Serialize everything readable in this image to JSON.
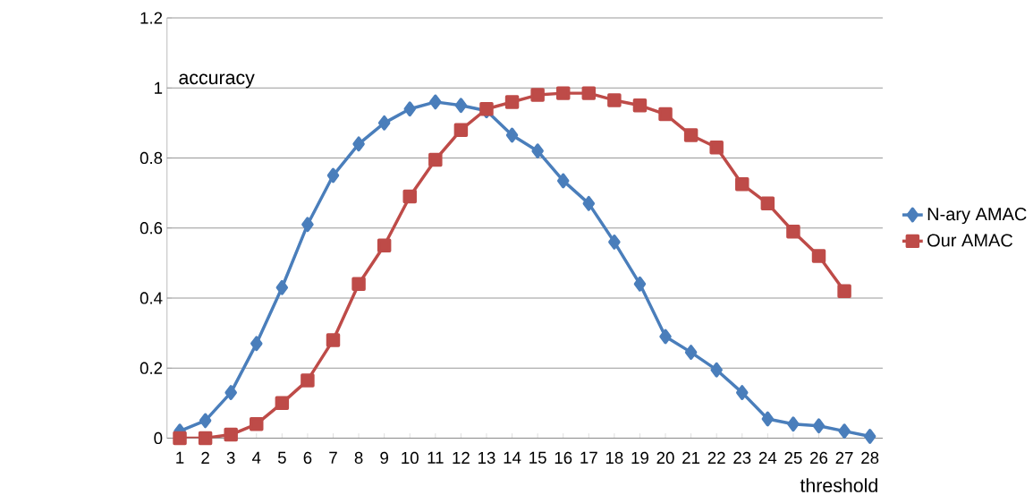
{
  "chart_data": {
    "type": "line",
    "xlabel": "threshold",
    "ylabel": "accuracy",
    "categories": [
      "1",
      "2",
      "3",
      "4",
      "5",
      "6",
      "7",
      "8",
      "9",
      "10",
      "11",
      "12",
      "13",
      "14",
      "15",
      "16",
      "17",
      "18",
      "19",
      "20",
      "21",
      "22",
      "23",
      "24",
      "25",
      "26",
      "27",
      "28"
    ],
    "series": [
      {
        "name": "N-ary AMAC",
        "color": "#4a7ebb",
        "marker": "diamond",
        "values": [
          0.02,
          0.05,
          0.13,
          0.27,
          0.43,
          0.61,
          0.75,
          0.84,
          0.9,
          0.94,
          0.96,
          0.95,
          0.935,
          0.865,
          0.82,
          0.735,
          0.67,
          0.56,
          0.44,
          0.29,
          0.245,
          0.195,
          0.13,
          0.055,
          0.04,
          0.035,
          0.02,
          0.005
        ]
      },
      {
        "name": "Our AMAC",
        "color": "#be4b48",
        "marker": "square",
        "values": [
          0,
          0,
          0.01,
          0.04,
          0.1,
          0.165,
          0.28,
          0.44,
          0.55,
          0.69,
          0.795,
          0.88,
          0.94,
          0.96,
          0.98,
          0.985,
          0.985,
          0.965,
          0.95,
          0.925,
          0.865,
          0.83,
          0.725,
          0.67,
          0.59,
          0.52,
          0.42,
          null
        ]
      }
    ],
    "ylim": [
      0,
      1.2
    ],
    "yticks": [
      0,
      0.2,
      0.4,
      0.6,
      0.8,
      1,
      1.2
    ],
    "grid": "y",
    "legend": "right"
  }
}
